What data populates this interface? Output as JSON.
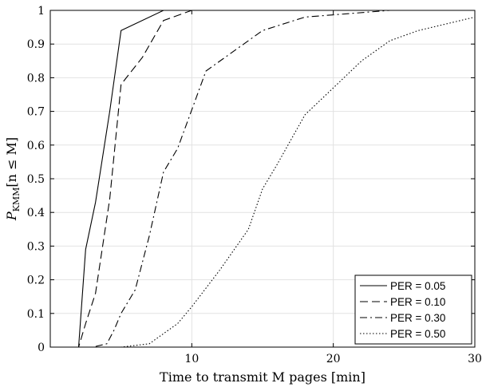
{
  "chart_data": {
    "type": "line",
    "title": "",
    "xlabel": "Time to transmit M pages [min]",
    "ylabel": "P_KMM[n ≤ M]",
    "ylabel_parts": {
      "main": "P",
      "sub": "KMM",
      "rest": "[n ≤ M]"
    },
    "xlim": [
      0,
      30
    ],
    "ylim": [
      0,
      1
    ],
    "xticks": [
      10,
      20,
      30
    ],
    "yticks": [
      0,
      0.1,
      0.2,
      0.3,
      0.4,
      0.5,
      0.6,
      0.7,
      0.8,
      0.9,
      1
    ],
    "ytick_labels": [
      "0",
      "0.1",
      "0.2",
      "0.3",
      "0.4",
      "0.5",
      "0.6",
      "0.7",
      "0.8",
      "0.9",
      "1"
    ],
    "grid": true,
    "legend_position": "bottom-right",
    "series": [
      {
        "name": "PER = 0.05",
        "style": "solid",
        "color": "#000000",
        "points": [
          [
            0,
            0
          ],
          [
            2,
            0
          ],
          [
            2.5,
            0.29
          ],
          [
            3.2,
            0.43
          ],
          [
            4.2,
            0.7
          ],
          [
            5,
            0.94
          ],
          [
            8,
            1.0
          ],
          [
            30,
            1.0
          ]
        ]
      },
      {
        "name": "PER = 0.10",
        "style": "dashed",
        "color": "#000000",
        "points": [
          [
            0,
            0
          ],
          [
            2,
            0
          ],
          [
            2.5,
            0.07
          ],
          [
            3.2,
            0.16
          ],
          [
            4.2,
            0.44
          ],
          [
            5,
            0.78
          ],
          [
            6.5,
            0.86
          ],
          [
            8,
            0.97
          ],
          [
            10,
            1.0
          ],
          [
            30,
            1.0
          ]
        ]
      },
      {
        "name": "PER = 0.30",
        "style": "dashdot",
        "color": "#000000",
        "points": [
          [
            0,
            0
          ],
          [
            3,
            0
          ],
          [
            4,
            0.01
          ],
          [
            4.5,
            0.05
          ],
          [
            5,
            0.1
          ],
          [
            6,
            0.17
          ],
          [
            7,
            0.33
          ],
          [
            8,
            0.52
          ],
          [
            9,
            0.59
          ],
          [
            11,
            0.82
          ],
          [
            15,
            0.94
          ],
          [
            18,
            0.98
          ],
          [
            21,
            0.99
          ],
          [
            24,
            1.0
          ],
          [
            30,
            1.0
          ]
        ]
      },
      {
        "name": "PER = 0.50",
        "style": "dotted",
        "color": "#000000",
        "points": [
          [
            0,
            0
          ],
          [
            5,
            0
          ],
          [
            7,
            0.01
          ],
          [
            8,
            0.04
          ],
          [
            9,
            0.07
          ],
          [
            10,
            0.12
          ],
          [
            12,
            0.23
          ],
          [
            14,
            0.35
          ],
          [
            15,
            0.47
          ],
          [
            16,
            0.54
          ],
          [
            18,
            0.69
          ],
          [
            20,
            0.77
          ],
          [
            22,
            0.85
          ],
          [
            24,
            0.91
          ],
          [
            26,
            0.94
          ],
          [
            28,
            0.96
          ],
          [
            30,
            0.98
          ]
        ]
      }
    ]
  }
}
